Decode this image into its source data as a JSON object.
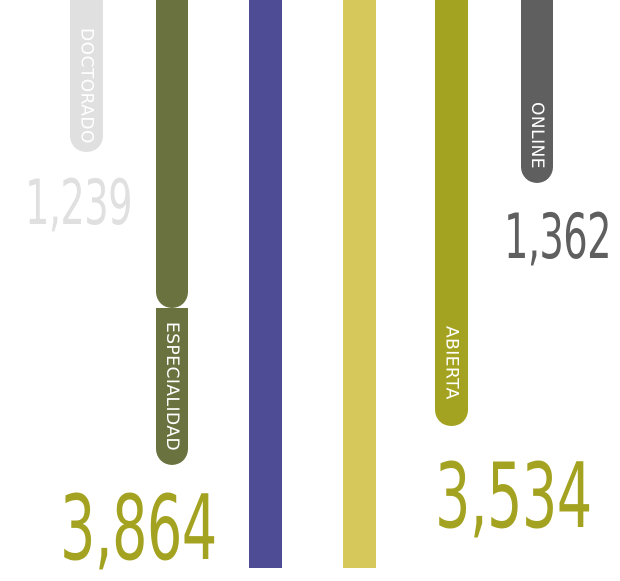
{
  "chart_data": {
    "type": "bar",
    "categories": [
      "DOCTORADO",
      "ESPECIALIDAD",
      "",
      "",
      "ABIERTA",
      "ONLINE"
    ],
    "values": [
      1239,
      3864,
      null,
      null,
      3534,
      1362
    ],
    "value_labels": [
      "1,239",
      "3,864",
      "",
      "",
      "3,534",
      "1,362"
    ],
    "colors": [
      "#e0e0e0",
      "#6a7340",
      "#4d4c94",
      "#d6c85a",
      "#a4a321",
      "#5f5f5f"
    ],
    "value_colors": [
      "#e0e0e0",
      "#a4a321",
      "",
      "",
      "#a4a321",
      "#5f5f5f"
    ]
  }
}
